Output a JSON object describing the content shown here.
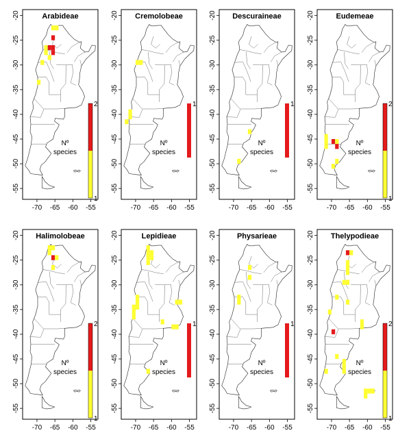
{
  "figure": {
    "x_ticks": [
      "-70",
      "-65",
      "-60",
      "-55"
    ],
    "y_ticks": [
      "-20",
      "-25",
      "-30",
      "-35",
      "-40",
      "-45",
      "-50",
      "-55"
    ],
    "legend_title_line1": "Nº",
    "legend_title_line2": "species",
    "colors": {
      "one_species": "#ffff33",
      "two_species": "#e41a1c",
      "outline": "#000000"
    }
  },
  "panels": [
    {
      "name": "Arabideae",
      "legend_max": "2",
      "legend_min": "1",
      "cells": [
        {
          "lon": -65.5,
          "lat": -22.5,
          "n": 1
        },
        {
          "lon": -64.5,
          "lat": -22.5,
          "n": 1
        },
        {
          "lon": -65.5,
          "lat": -24.5,
          "n": 2
        },
        {
          "lon": -67.5,
          "lat": -26.5,
          "n": 1
        },
        {
          "lon": -66.5,
          "lat": -26.5,
          "n": 2
        },
        {
          "lon": -65.5,
          "lat": -26.5,
          "n": 2
        },
        {
          "lon": -67.5,
          "lat": -27.5,
          "n": 1
        },
        {
          "lon": -65.5,
          "lat": -27.5,
          "n": 2
        },
        {
          "lon": -66.5,
          "lat": -28.5,
          "n": 1
        },
        {
          "lon": -68.5,
          "lat": -29.5,
          "n": 1
        },
        {
          "lon": -69.5,
          "lat": -33.5,
          "n": 1
        }
      ]
    },
    {
      "name": "Cremolobeae",
      "legend_max": "1",
      "legend_min": "",
      "cells": [
        {
          "lon": -69.5,
          "lat": -29.5,
          "n": 1
        },
        {
          "lon": -68.5,
          "lat": -29.5,
          "n": 1
        },
        {
          "lon": -71.5,
          "lat": -39.5,
          "n": 1
        },
        {
          "lon": -71.5,
          "lat": -40.5,
          "n": 1
        },
        {
          "lon": -72.5,
          "lat": -41.5,
          "n": 1
        }
      ]
    },
    {
      "name": "Descuraineae",
      "legend_max": "1",
      "legend_min": "",
      "cells": [
        {
          "lon": -65.5,
          "lat": -43.5,
          "n": 1
        },
        {
          "lon": -68.5,
          "lat": -49.5,
          "n": 1
        }
      ]
    },
    {
      "name": "Eudemeae",
      "legend_max": "2",
      "legend_min": "1",
      "cells": [
        {
          "lon": -71.5,
          "lat": -44.5,
          "n": 1
        },
        {
          "lon": -71.5,
          "lat": -45.5,
          "n": 1
        },
        {
          "lon": -71.5,
          "lat": -46.5,
          "n": 1
        },
        {
          "lon": -69.5,
          "lat": -45.5,
          "n": 2
        },
        {
          "lon": -68.5,
          "lat": -45.5,
          "n": 1
        },
        {
          "lon": -68.5,
          "lat": -46.5,
          "n": 2
        },
        {
          "lon": -68.5,
          "lat": -49.5,
          "n": 1
        },
        {
          "lon": -69.5,
          "lat": -50.5,
          "n": 1
        }
      ]
    },
    {
      "name": "Halimolobeae",
      "legend_max": "2",
      "legend_min": "1",
      "cells": [
        {
          "lon": -66.5,
          "lat": -22.5,
          "n": 1
        },
        {
          "lon": -65.5,
          "lat": -22.5,
          "n": 1
        },
        {
          "lon": -66.5,
          "lat": -23.5,
          "n": 1
        },
        {
          "lon": -65.5,
          "lat": -24.5,
          "n": 2
        },
        {
          "lon": -64.5,
          "lat": -24.5,
          "n": 1
        },
        {
          "lon": -65.5,
          "lat": -26.5,
          "n": 1
        }
      ]
    },
    {
      "name": "Lepidieae",
      "legend_max": "1",
      "legend_min": "",
      "cells": [
        {
          "lon": -66.5,
          "lat": -22.5,
          "n": 1
        },
        {
          "lon": -66.5,
          "lat": -23.5,
          "n": 1
        },
        {
          "lon": -65.5,
          "lat": -23.5,
          "n": 1
        },
        {
          "lon": -66.5,
          "lat": -24.5,
          "n": 1
        },
        {
          "lon": -65.5,
          "lat": -24.5,
          "n": 1
        },
        {
          "lon": -66.5,
          "lat": -25.5,
          "n": 1
        },
        {
          "lon": -69.5,
          "lat": -32.5,
          "n": 1
        },
        {
          "lon": -69.5,
          "lat": -33.5,
          "n": 1
        },
        {
          "lon": -70.5,
          "lat": -34.5,
          "n": 1
        },
        {
          "lon": -69.5,
          "lat": -34.5,
          "n": 1
        },
        {
          "lon": -70.5,
          "lat": -35.5,
          "n": 1
        },
        {
          "lon": -70.5,
          "lat": -36.5,
          "n": 1
        },
        {
          "lon": -58.5,
          "lat": -33.5,
          "n": 1
        },
        {
          "lon": -57.5,
          "lat": -33.5,
          "n": 1
        },
        {
          "lon": -62.5,
          "lat": -37.5,
          "n": 1
        },
        {
          "lon": -59.5,
          "lat": -38.5,
          "n": 1
        },
        {
          "lon": -58.5,
          "lat": -38.5,
          "n": 1
        },
        {
          "lon": -66.5,
          "lat": -47.5,
          "n": 1
        }
      ]
    },
    {
      "name": "Physarieae",
      "legend_max": "1",
      "legend_min": "",
      "cells": [
        {
          "lon": -65.5,
          "lat": -26.5,
          "n": 1
        },
        {
          "lon": -65.5,
          "lat": -28.5,
          "n": 1
        },
        {
          "lon": -68.5,
          "lat": -32.5,
          "n": 1
        },
        {
          "lon": -68.5,
          "lat": -33.5,
          "n": 1
        }
      ]
    },
    {
      "name": "Thelypodieae",
      "legend_max": "2",
      "legend_min": "1",
      "cells": [
        {
          "lon": -65.5,
          "lat": -23.5,
          "n": 2
        },
        {
          "lon": -64.5,
          "lat": -23.5,
          "n": 1
        },
        {
          "lon": -65.5,
          "lat": -25.5,
          "n": 1
        },
        {
          "lon": -65.5,
          "lat": -26.5,
          "n": 1
        },
        {
          "lon": -65.5,
          "lat": -27.5,
          "n": 1
        },
        {
          "lon": -66.5,
          "lat": -29.5,
          "n": 1
        },
        {
          "lon": -65.5,
          "lat": -29.5,
          "n": 1
        },
        {
          "lon": -68.5,
          "lat": -32.5,
          "n": 1
        },
        {
          "lon": -65.5,
          "lat": -33.5,
          "n": 1
        },
        {
          "lon": -70.5,
          "lat": -35.5,
          "n": 1
        },
        {
          "lon": -61.5,
          "lat": -37.5,
          "n": 1
        },
        {
          "lon": -61.5,
          "lat": -38.5,
          "n": 1
        },
        {
          "lon": -69.5,
          "lat": -39.5,
          "n": 2
        },
        {
          "lon": -68.5,
          "lat": -44.5,
          "n": 1
        },
        {
          "lon": -66.5,
          "lat": -45.5,
          "n": 1
        },
        {
          "lon": -66.5,
          "lat": -46.5,
          "n": 1
        },
        {
          "lon": -71.5,
          "lat": -47.5,
          "n": 1
        },
        {
          "lon": -66.5,
          "lat": -47.5,
          "n": 1
        },
        {
          "lon": -60.5,
          "lat": -51.5,
          "n": 1
        },
        {
          "lon": -59.5,
          "lat": -51.5,
          "n": 1
        },
        {
          "lon": -58.5,
          "lat": -51.5,
          "n": 1
        },
        {
          "lon": -60.5,
          "lat": -52.5,
          "n": 1
        }
      ]
    }
  ]
}
